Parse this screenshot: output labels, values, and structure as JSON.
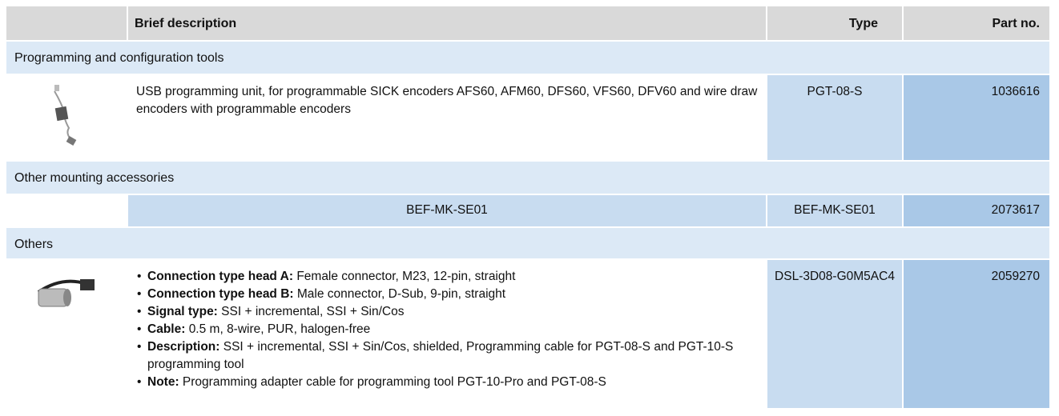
{
  "table": {
    "header": [
      "Brief description",
      "Type",
      "Part no."
    ],
    "sections": [
      {
        "title": "Programming and configuration tools",
        "rows": [
          {
            "description": "USB programming unit, for programmable SICK encoders AFS60, AFM60, DFS60, VFS60, DFV60 and wire draw encoders with programmable encoders",
            "type": "PGT-08-S",
            "part_no": "1036616"
          }
        ]
      },
      {
        "title": "Other mounting accessories",
        "rows": [
          {
            "description": "BEF-MK-SE01",
            "type": "BEF-MK-SE01",
            "part_no": "2073617"
          }
        ]
      },
      {
        "title": "Others",
        "rows": [
          {
            "bullets": [
              {
                "label": "Connection type head A:",
                "text": "Female connector, M23, 12-pin, straight"
              },
              {
                "label": "Connection type head B:",
                "text": "Male connector, D-Sub, 9-pin, straight"
              },
              {
                "label": "Signal type:",
                "text": "SSI + incremental, SSI + Sin/Cos"
              },
              {
                "label": "Cable:",
                "text": "0.5 m, 8-wire, PUR, halogen-free"
              },
              {
                "label": "Description:",
                "text": "SSI + incremental, SSI + Sin/Cos, shielded, Programming cable for PGT-08-S and PGT-10-S programming tool"
              },
              {
                "label": "Note:",
                "text": "Programming adapter cable for programming tool PGT-10-Pro and PGT-08-S"
              }
            ],
            "type": "DSL-3D08-G0M5AC4",
            "part_no": "2059270"
          }
        ]
      }
    ]
  }
}
